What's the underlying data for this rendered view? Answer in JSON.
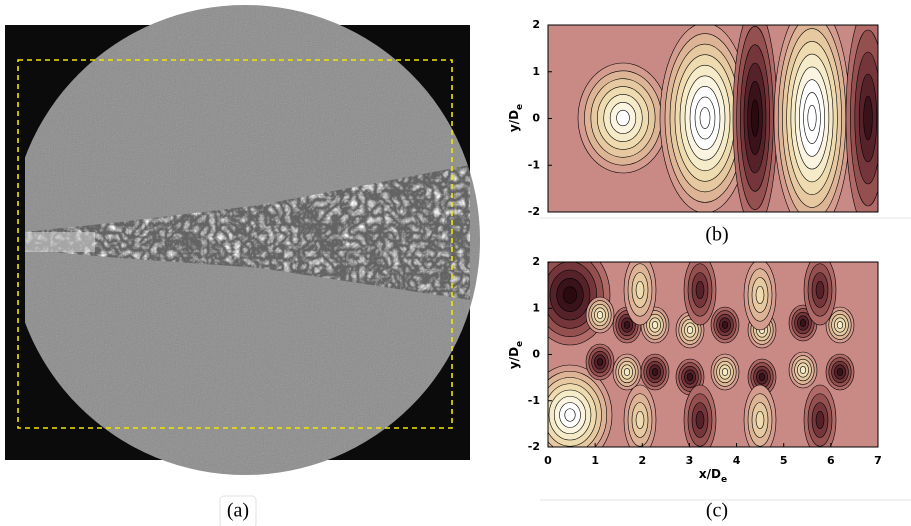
{
  "panels": [
    {
      "label": "(a)"
    },
    {
      "label": "(b)",
      "ylabel": "y/D",
      "ylabel_sub": "e",
      "ylim": [
        -2,
        2
      ],
      "yticks": [
        2,
        1,
        0,
        -1,
        -2
      ]
    },
    {
      "label": "(c)",
      "ylabel": "y/D",
      "ylabel_sub": "e",
      "xlabel": "x/D",
      "xlabel_sub": "e",
      "ylim": [
        -2,
        2
      ],
      "yticks": [
        2,
        1,
        0,
        -1,
        -2
      ],
      "xlim": [
        0,
        7
      ],
      "xticks": [
        0,
        1,
        2,
        3,
        4,
        5,
        6,
        7
      ]
    }
  ]
}
